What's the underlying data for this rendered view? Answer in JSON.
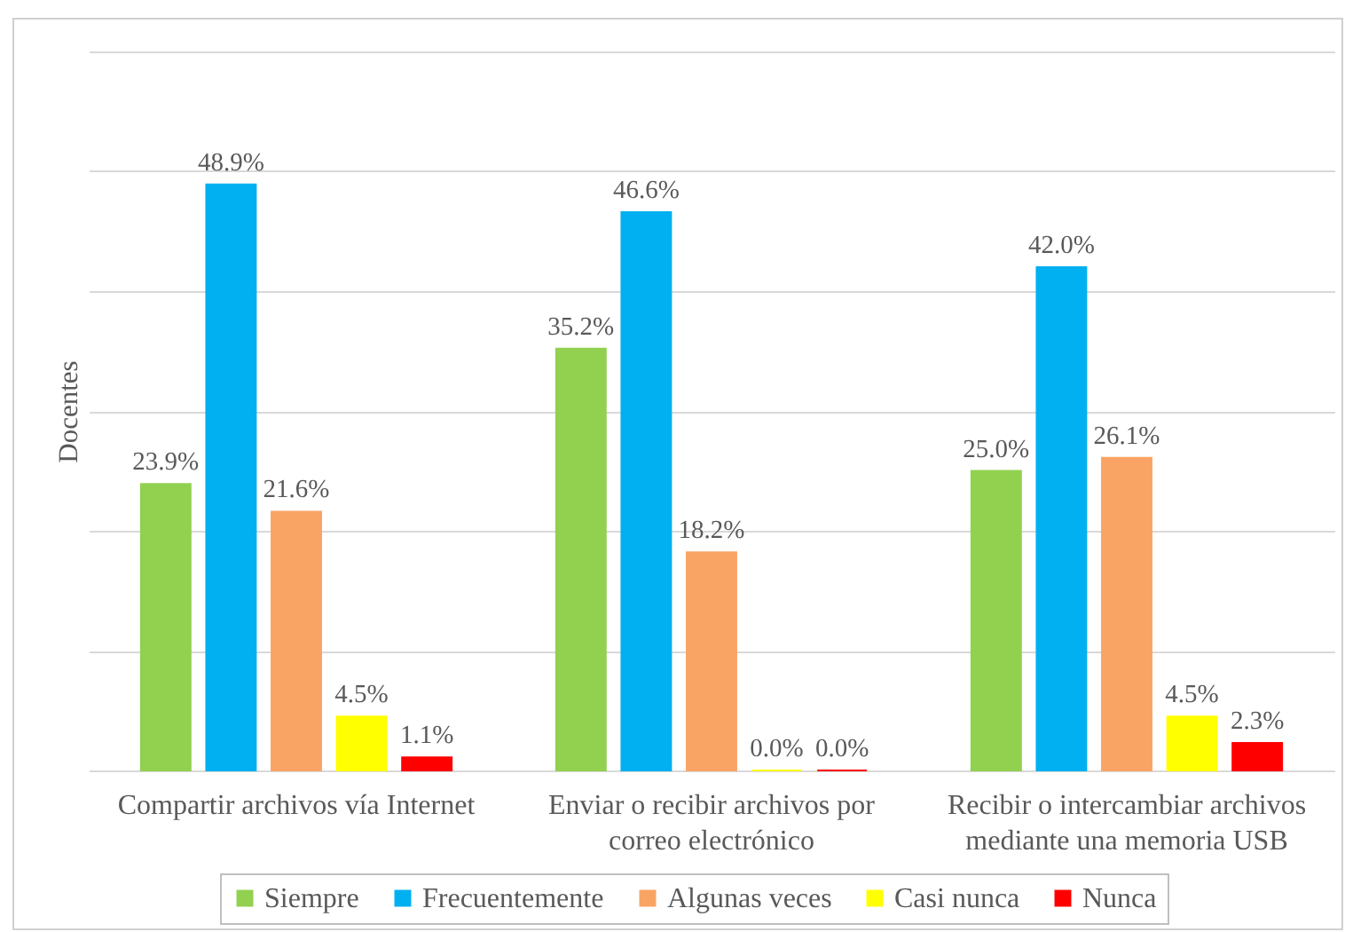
{
  "chart_data": {
    "type": "bar",
    "ylabel": "Docentes",
    "categories": [
      "Compartir archivos vía Internet",
      "Enviar o recibir archivos por correo electrónico",
      "Recibir o intercambiar archivos mediante una memoria USB"
    ],
    "series": [
      {
        "name": "Siempre",
        "color": "#92d050",
        "values": [
          23.9,
          35.2,
          25.0
        ],
        "value_labels": [
          "23.9%",
          "35.2%",
          "25.0%"
        ]
      },
      {
        "name": "Frecuentemente",
        "color": "#00b0f0",
        "values": [
          48.9,
          46.6,
          42.0
        ],
        "value_labels": [
          "48.9%",
          "46.6%",
          "42.0%"
        ]
      },
      {
        "name": "Algunas veces",
        "color": "#f9a464",
        "values": [
          21.6,
          18.2,
          26.1
        ],
        "value_labels": [
          "21.6%",
          "18.2%",
          "26.1%"
        ]
      },
      {
        "name": "Casi nunca",
        "color": "#ffff00",
        "values": [
          4.5,
          0.0,
          4.5
        ],
        "value_labels": [
          "4.5%",
          "0.0%",
          "4.5%"
        ]
      },
      {
        "name": "Nunca",
        "color": "#ff0000",
        "values": [
          1.1,
          0.0,
          2.3
        ],
        "value_labels": [
          "1.1%",
          "0.0%",
          "2.3%"
        ]
      }
    ],
    "ylim": [
      0,
      60
    ],
    "yticks": [
      {
        "value": 0,
        "label": null
      },
      {
        "value": 10,
        "label": null
      },
      {
        "value": 20,
        "label": null
      },
      {
        "value": 30,
        "label": null
      },
      {
        "value": 40,
        "label": null
      },
      {
        "value": 50,
        "label": null
      },
      {
        "value": 60,
        "label": null
      }
    ],
    "grid": "y",
    "tick_labels": "x",
    "legend": "bottom"
  }
}
